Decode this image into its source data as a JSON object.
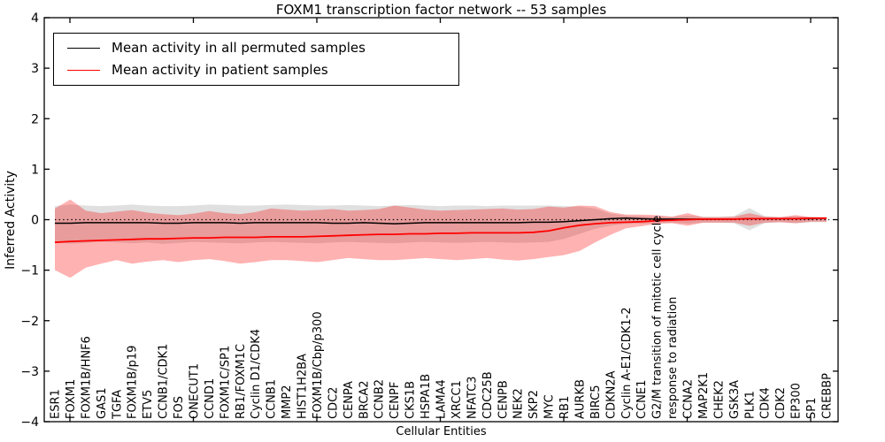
{
  "figure": {
    "background": "#ffffff"
  },
  "chart_data": {
    "type": "line",
    "title": "FOXM1 transcription factor network -- 53 samples",
    "xlabel": "Cellular Entities",
    "ylabel": "Inferred Activity",
    "ylim": [
      -4,
      4
    ],
    "ytick_values": [
      4,
      3,
      2,
      1,
      0,
      -1,
      -2,
      -3,
      -4
    ],
    "ytick_labels": [
      "4",
      "3",
      "2",
      "1",
      "0",
      "−1",
      "−2",
      "−3",
      "−4"
    ],
    "zero_line": {
      "value": 0,
      "style": "dotted",
      "color": "#000000"
    },
    "legend_position": "upper left",
    "grid": false,
    "categories": [
      "ESR1",
      "FOXM1",
      "FOXM1B/HNF6",
      "GAS1",
      "TGFA",
      "FOXM1B/p19",
      "ETV5",
      "CCNB1/CDK1",
      "FOS",
      "ONECUT1",
      "CCND1",
      "FOXM1C/SP1",
      "RB1/FOXM1C",
      "Cyclin D1/CDK4",
      "CCNB1",
      "MMP2",
      "HIST1H2BA",
      "FOXM1B/Cbp/p300",
      "CDC2",
      "CENPA",
      "BRCA2",
      "CCNB2",
      "CENPF",
      "CKS1B",
      "HSPA1B",
      "LAMA4",
      "XRCC1",
      "NFATC3",
      "CDC25B",
      "CENPB",
      "NEK2",
      "SKP2",
      "MYC",
      "RB1",
      "AURKB",
      "BIRC5",
      "CDKN2A",
      "Cyclin A-E1/CDK1-2",
      "CCNE1",
      "G2/M transition of mitotic cell cycle",
      "response to radiation",
      "CCNA2",
      "MAP2K1",
      "CHEK2",
      "GSK3A",
      "PLK1",
      "CDK4",
      "CDK2",
      "EP300",
      "SP1",
      "CREBBP"
    ],
    "series": [
      {
        "name": "Mean activity in all permuted samples",
        "color": "#000000",
        "band_fill": "#999999",
        "band_opacity": 0.3,
        "values": [
          -0.07,
          -0.07,
          -0.06,
          -0.06,
          -0.06,
          -0.06,
          -0.06,
          -0.07,
          -0.07,
          -0.06,
          -0.06,
          -0.06,
          -0.07,
          -0.06,
          -0.06,
          -0.06,
          -0.06,
          -0.06,
          -0.07,
          -0.07,
          -0.06,
          -0.07,
          -0.08,
          -0.07,
          -0.06,
          -0.06,
          -0.06,
          -0.06,
          -0.06,
          -0.06,
          -0.06,
          -0.05,
          -0.05,
          -0.04,
          -0.02,
          0.0,
          0.02,
          0.03,
          0.02,
          0.01,
          0.01,
          0.01,
          0.01,
          0.01,
          0.01,
          0.02,
          0.02,
          0.02,
          0.02,
          0.02,
          0.03
        ],
        "band_hi": [
          0.27,
          0.3,
          0.28,
          0.27,
          0.28,
          0.3,
          0.28,
          0.27,
          0.27,
          0.28,
          0.3,
          0.29,
          0.28,
          0.28,
          0.29,
          0.3,
          0.29,
          0.28,
          0.28,
          0.29,
          0.28,
          0.27,
          0.28,
          0.29,
          0.28,
          0.27,
          0.28,
          0.28,
          0.27,
          0.28,
          0.28,
          0.28,
          0.28,
          0.27,
          0.26,
          0.22,
          0.12,
          0.08,
          0.07,
          0.06,
          0.06,
          0.08,
          0.06,
          0.06,
          0.07,
          0.23,
          0.07,
          0.05,
          0.07,
          0.05,
          0.05
        ],
        "band_lo": [
          -0.44,
          -0.48,
          -0.46,
          -0.44,
          -0.45,
          -0.47,
          -0.45,
          -0.48,
          -0.46,
          -0.44,
          -0.45,
          -0.46,
          -0.47,
          -0.45,
          -0.44,
          -0.45,
          -0.46,
          -0.47,
          -0.45,
          -0.44,
          -0.45,
          -0.46,
          -0.47,
          -0.45,
          -0.44,
          -0.45,
          -0.46,
          -0.45,
          -0.44,
          -0.45,
          -0.46,
          -0.45,
          -0.44,
          -0.38,
          -0.28,
          -0.18,
          -0.12,
          -0.08,
          -0.08,
          -0.07,
          -0.06,
          -0.08,
          -0.06,
          -0.06,
          -0.07,
          -0.21,
          -0.07,
          -0.05,
          -0.07,
          -0.05,
          -0.05
        ]
      },
      {
        "name": "Mean activity in patient samples",
        "color": "#ff0000",
        "band_fill": "#ff0000",
        "band_opacity": 0.3,
        "values": [
          -0.45,
          -0.43,
          -0.42,
          -0.41,
          -0.4,
          -0.39,
          -0.38,
          -0.38,
          -0.37,
          -0.36,
          -0.36,
          -0.35,
          -0.35,
          -0.35,
          -0.34,
          -0.34,
          -0.34,
          -0.33,
          -0.32,
          -0.31,
          -0.3,
          -0.29,
          -0.29,
          -0.28,
          -0.28,
          -0.27,
          -0.27,
          -0.26,
          -0.26,
          -0.26,
          -0.26,
          -0.25,
          -0.22,
          -0.16,
          -0.11,
          -0.08,
          -0.06,
          -0.05,
          -0.04,
          -0.02,
          -0.01,
          0.0,
          0.01,
          0.01,
          0.01,
          0.02,
          0.02,
          0.02,
          0.02,
          0.03,
          0.03
        ],
        "band_hi": [
          0.22,
          0.4,
          0.18,
          0.13,
          0.16,
          0.19,
          0.14,
          0.11,
          0.09,
          0.12,
          0.17,
          0.13,
          0.11,
          0.15,
          0.22,
          0.2,
          0.18,
          0.19,
          0.21,
          0.18,
          0.19,
          0.21,
          0.28,
          0.24,
          0.2,
          0.18,
          0.19,
          0.2,
          0.21,
          0.22,
          0.2,
          0.21,
          0.26,
          0.24,
          0.28,
          0.27,
          0.15,
          0.1,
          0.1,
          0.09,
          0.06,
          0.13,
          0.05,
          0.05,
          0.06,
          0.13,
          0.06,
          0.05,
          0.09,
          0.05,
          0.04
        ],
        "band_lo": [
          -1.0,
          -1.15,
          -0.95,
          -0.87,
          -0.8,
          -0.87,
          -0.83,
          -0.8,
          -0.84,
          -0.8,
          -0.78,
          -0.82,
          -0.87,
          -0.84,
          -0.8,
          -0.8,
          -0.82,
          -0.84,
          -0.8,
          -0.76,
          -0.78,
          -0.8,
          -0.8,
          -0.78,
          -0.76,
          -0.78,
          -0.8,
          -0.78,
          -0.76,
          -0.79,
          -0.81,
          -0.78,
          -0.74,
          -0.7,
          -0.62,
          -0.45,
          -0.3,
          -0.17,
          -0.13,
          -0.08,
          -0.07,
          -0.12,
          -0.06,
          -0.06,
          -0.06,
          -0.12,
          -0.06,
          -0.05,
          -0.07,
          -0.04,
          -0.04
        ]
      }
    ]
  }
}
